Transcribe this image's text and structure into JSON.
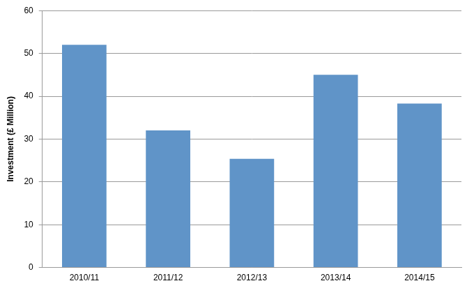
{
  "chart_data": {
    "type": "bar",
    "ylabel": "Investment (£ Million)",
    "categories": [
      "2010/11",
      "2011/12",
      "2012/13",
      "2013/14",
      "2014/15"
    ],
    "values": [
      52,
      32,
      25.4,
      45,
      38.3
    ],
    "color": "#6094c8",
    "ylim": [
      0,
      60
    ],
    "yticks": [
      0,
      10,
      20,
      30,
      40,
      50,
      60
    ],
    "grid": true
  }
}
